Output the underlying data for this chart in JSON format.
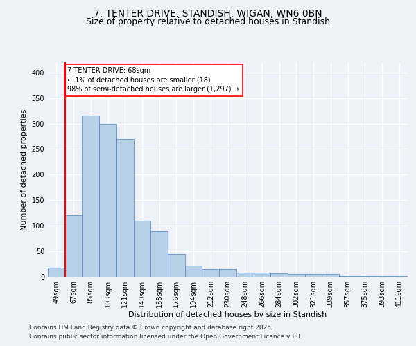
{
  "title_line1": "7, TENTER DRIVE, STANDISH, WIGAN, WN6 0BN",
  "title_line2": "Size of property relative to detached houses in Standish",
  "xlabel": "Distribution of detached houses by size in Standish",
  "ylabel": "Number of detached properties",
  "categories": [
    "49sqm",
    "67sqm",
    "85sqm",
    "103sqm",
    "121sqm",
    "140sqm",
    "158sqm",
    "176sqm",
    "194sqm",
    "212sqm",
    "230sqm",
    "248sqm",
    "266sqm",
    "284sqm",
    "302sqm",
    "321sqm",
    "339sqm",
    "357sqm",
    "375sqm",
    "393sqm",
    "411sqm"
  ],
  "values": [
    18,
    120,
    315,
    300,
    270,
    110,
    90,
    45,
    22,
    15,
    15,
    8,
    8,
    7,
    6,
    5,
    5,
    2,
    2,
    2,
    1
  ],
  "bar_color": "#b8cfe8",
  "bar_edge_color": "#5b8ec4",
  "annotation_text": "7 TENTER DRIVE: 68sqm\n← 1% of detached houses are smaller (18)\n98% of semi-detached houses are larger (1,297) →",
  "annotation_bar_index": 1,
  "vline_color": "red",
  "annotation_box_color": "white",
  "annotation_box_edge": "red",
  "footer_line1": "Contains HM Land Registry data © Crown copyright and database right 2025.",
  "footer_line2": "Contains public sector information licensed under the Open Government Licence v3.0.",
  "ylim": [
    0,
    420
  ],
  "yticks": [
    0,
    50,
    100,
    150,
    200,
    250,
    300,
    350,
    400
  ],
  "background_color": "#eef2f8",
  "plot_background": "#eef2f8",
  "grid_color": "white",
  "title_fontsize": 10,
  "subtitle_fontsize": 9,
  "axis_label_fontsize": 8,
  "tick_fontsize": 7,
  "footer_fontsize": 6.5
}
